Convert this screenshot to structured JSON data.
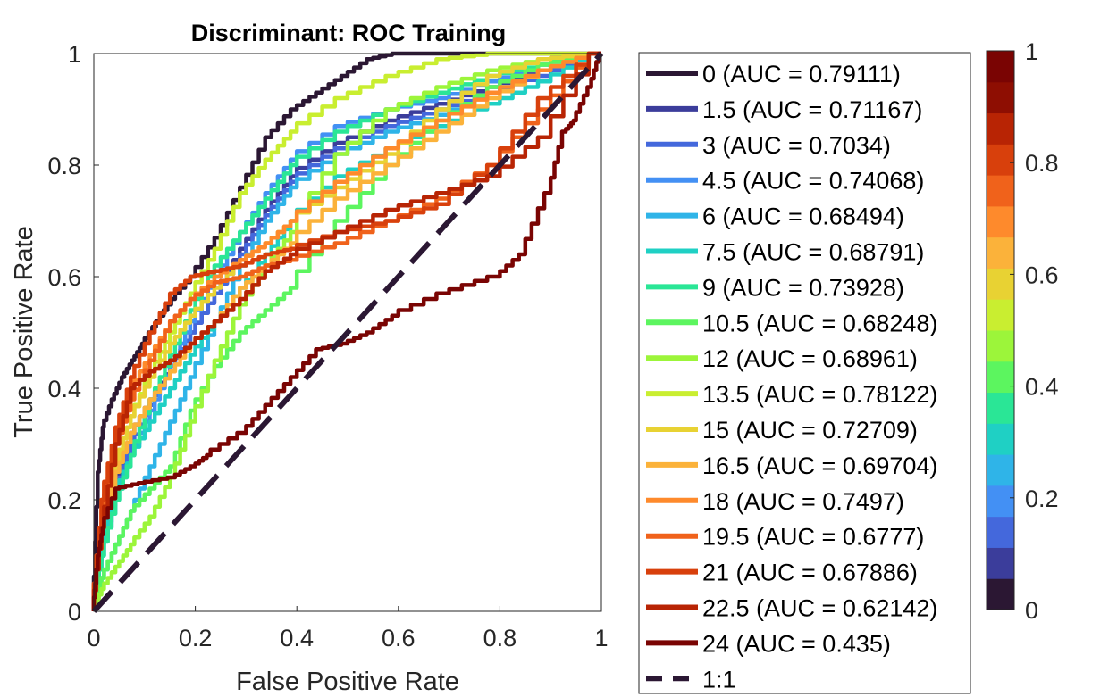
{
  "chart_data": {
    "type": "line",
    "title": "Discriminant: ROC Training",
    "xlabel": "False Positive Rate",
    "ylabel": "True Positive Rate",
    "xlim": [
      0,
      1
    ],
    "ylim": [
      0,
      1
    ],
    "xticks": [
      "0",
      "0.2",
      "0.4",
      "0.6",
      "0.8",
      "1"
    ],
    "yticks": [
      "0",
      "0.2",
      "0.4",
      "0.6",
      "0.8",
      "1"
    ],
    "grid": true,
    "legend_position": "right",
    "colorbar": {
      "ticks": [
        "0",
        "0.2",
        "0.4",
        "0.6",
        "0.8",
        "1"
      ],
      "colors": [
        "#2b1733",
        "#3b3d9b",
        "#4468dc",
        "#4390f4",
        "#2fb4e8",
        "#1fd0c4",
        "#2ae696",
        "#5cf55f",
        "#9cf53a",
        "#c9ee30",
        "#e8d233",
        "#fbb23a",
        "#fe8a2c",
        "#f0621b",
        "#d8400c",
        "#b82404",
        "#8e0e02",
        "#7a0403"
      ]
    },
    "series": [
      {
        "name": "0 (AUC = 0.79111)",
        "color": "#2b1733",
        "x": [
          0,
          0.01,
          0.02,
          0.04,
          0.06,
          0.08,
          0.1,
          0.13,
          0.16,
          0.2,
          0.25,
          0.3,
          0.35,
          0.4,
          0.45,
          0.5,
          0.55,
          0.6,
          0.7,
          0.8,
          1
        ],
        "y": [
          0,
          0.25,
          0.33,
          0.38,
          0.42,
          0.45,
          0.48,
          0.52,
          0.56,
          0.6,
          0.67,
          0.76,
          0.85,
          0.9,
          0.93,
          0.96,
          0.99,
          1,
          1,
          1,
          1
        ]
      },
      {
        "name": "1.5 (AUC = 0.71167)",
        "color": "#3b3d9b",
        "x": [
          0,
          0.02,
          0.05,
          0.08,
          0.12,
          0.16,
          0.2,
          0.25,
          0.3,
          0.35,
          0.4,
          0.5,
          0.6,
          0.7,
          0.8,
          0.9,
          1
        ],
        "y": [
          0,
          0.12,
          0.24,
          0.32,
          0.38,
          0.44,
          0.5,
          0.57,
          0.65,
          0.72,
          0.78,
          0.84,
          0.88,
          0.91,
          0.94,
          0.97,
          1
        ]
      },
      {
        "name": "3 (AUC = 0.7034)",
        "color": "#4468dc",
        "x": [
          0,
          0.02,
          0.05,
          0.08,
          0.12,
          0.16,
          0.2,
          0.25,
          0.3,
          0.35,
          0.4,
          0.5,
          0.6,
          0.7,
          0.8,
          0.9,
          1
        ],
        "y": [
          0,
          0.1,
          0.22,
          0.3,
          0.37,
          0.44,
          0.5,
          0.57,
          0.64,
          0.71,
          0.77,
          0.83,
          0.87,
          0.9,
          0.93,
          0.96,
          1
        ]
      },
      {
        "name": "4.5 (AUC = 0.74068)",
        "color": "#4390f4",
        "x": [
          0,
          0.02,
          0.05,
          0.08,
          0.12,
          0.16,
          0.2,
          0.25,
          0.3,
          0.35,
          0.4,
          0.5,
          0.6,
          0.7,
          0.8,
          0.9,
          1
        ],
        "y": [
          0,
          0.1,
          0.2,
          0.28,
          0.36,
          0.44,
          0.52,
          0.6,
          0.68,
          0.75,
          0.81,
          0.87,
          0.9,
          0.92,
          0.95,
          0.98,
          1
        ]
      },
      {
        "name": "6 (AUC = 0.68494)",
        "color": "#2fb4e8",
        "x": [
          0,
          0.02,
          0.05,
          0.08,
          0.12,
          0.16,
          0.2,
          0.25,
          0.3,
          0.35,
          0.4,
          0.5,
          0.6,
          0.7,
          0.8,
          0.9,
          1
        ],
        "y": [
          0,
          0.06,
          0.12,
          0.18,
          0.26,
          0.34,
          0.42,
          0.52,
          0.62,
          0.7,
          0.76,
          0.82,
          0.86,
          0.89,
          0.93,
          0.97,
          1
        ]
      },
      {
        "name": "7.5 (AUC = 0.68791)",
        "color": "#1fd0c4",
        "x": [
          0,
          0.02,
          0.05,
          0.08,
          0.12,
          0.16,
          0.2,
          0.25,
          0.3,
          0.35,
          0.4,
          0.5,
          0.6,
          0.7,
          0.8,
          0.9,
          1
        ],
        "y": [
          0,
          0.12,
          0.22,
          0.28,
          0.34,
          0.4,
          0.46,
          0.52,
          0.58,
          0.64,
          0.7,
          0.78,
          0.83,
          0.87,
          0.91,
          0.95,
          1
        ]
      },
      {
        "name": "9 (AUC = 0.73928)",
        "color": "#2ae696",
        "x": [
          0,
          0.02,
          0.05,
          0.08,
          0.12,
          0.16,
          0.2,
          0.25,
          0.3,
          0.35,
          0.4,
          0.5,
          0.6,
          0.7,
          0.8,
          0.9,
          1
        ],
        "y": [
          0,
          0.1,
          0.2,
          0.28,
          0.38,
          0.46,
          0.54,
          0.62,
          0.68,
          0.74,
          0.8,
          0.86,
          0.9,
          0.93,
          0.96,
          0.98,
          1
        ]
      },
      {
        "name": "10.5 (AUC = 0.68248)",
        "color": "#5cf55f",
        "x": [
          0,
          0.02,
          0.05,
          0.08,
          0.12,
          0.16,
          0.2,
          0.25,
          0.3,
          0.35,
          0.4,
          0.5,
          0.6,
          0.7,
          0.8,
          0.9,
          1
        ],
        "y": [
          0,
          0.06,
          0.12,
          0.18,
          0.22,
          0.26,
          0.36,
          0.44,
          0.5,
          0.54,
          0.58,
          0.7,
          0.8,
          0.88,
          0.94,
          0.98,
          1
        ]
      },
      {
        "name": "12 (AUC = 0.68961)",
        "color": "#9cf53a",
        "x": [
          0,
          0.02,
          0.05,
          0.08,
          0.12,
          0.16,
          0.2,
          0.25,
          0.3,
          0.35,
          0.4,
          0.5,
          0.6,
          0.7,
          0.8,
          0.9,
          1
        ],
        "y": [
          0,
          0.04,
          0.08,
          0.12,
          0.17,
          0.24,
          0.34,
          0.45,
          0.55,
          0.62,
          0.68,
          0.82,
          0.9,
          0.94,
          0.97,
          0.99,
          1
        ]
      },
      {
        "name": "13.5 (AUC = 0.78122)",
        "color": "#c9ee30",
        "x": [
          0,
          0.02,
          0.05,
          0.08,
          0.12,
          0.16,
          0.2,
          0.25,
          0.3,
          0.35,
          0.4,
          0.5,
          0.6,
          0.7,
          0.8,
          0.9,
          1
        ],
        "y": [
          0,
          0.15,
          0.27,
          0.35,
          0.43,
          0.5,
          0.57,
          0.65,
          0.75,
          0.81,
          0.86,
          0.92,
          0.96,
          0.99,
          1,
          1,
          1
        ]
      },
      {
        "name": "15 (AUC = 0.72709)",
        "color": "#e8d233",
        "x": [
          0,
          0.02,
          0.05,
          0.08,
          0.12,
          0.16,
          0.2,
          0.25,
          0.3,
          0.35,
          0.4,
          0.5,
          0.6,
          0.7,
          0.8,
          0.9,
          1
        ],
        "y": [
          0,
          0.15,
          0.27,
          0.35,
          0.42,
          0.48,
          0.53,
          0.58,
          0.63,
          0.66,
          0.7,
          0.76,
          0.82,
          0.9,
          0.96,
          0.99,
          1
        ]
      },
      {
        "name": "16.5 (AUC = 0.69704)",
        "color": "#fbb23a",
        "x": [
          0,
          0.02,
          0.05,
          0.08,
          0.12,
          0.16,
          0.2,
          0.25,
          0.3,
          0.35,
          0.4,
          0.5,
          0.6,
          0.7,
          0.8,
          0.9,
          1
        ],
        "y": [
          0,
          0.15,
          0.25,
          0.32,
          0.38,
          0.43,
          0.48,
          0.52,
          0.58,
          0.62,
          0.66,
          0.74,
          0.8,
          0.86,
          0.92,
          0.97,
          1
        ]
      },
      {
        "name": "18 (AUC = 0.7497)",
        "color": "#fe8a2c",
        "x": [
          0,
          0.02,
          0.05,
          0.08,
          0.12,
          0.16,
          0.2,
          0.25,
          0.3,
          0.35,
          0.4,
          0.5,
          0.6,
          0.7,
          0.8,
          0.9,
          1
        ],
        "y": [
          0,
          0.2,
          0.32,
          0.4,
          0.46,
          0.52,
          0.56,
          0.6,
          0.63,
          0.66,
          0.7,
          0.77,
          0.83,
          0.88,
          0.93,
          0.97,
          1
        ]
      },
      {
        "name": "19.5 (AUC = 0.6777)",
        "color": "#f0621b",
        "x": [
          0,
          0.02,
          0.05,
          0.08,
          0.12,
          0.16,
          0.2,
          0.25,
          0.3,
          0.35,
          0.4,
          0.5,
          0.6,
          0.7,
          0.8,
          0.9,
          1
        ],
        "y": [
          0,
          0.18,
          0.3,
          0.38,
          0.45,
          0.52,
          0.56,
          0.59,
          0.6,
          0.62,
          0.63,
          0.66,
          0.7,
          0.74,
          0.8,
          0.9,
          1
        ]
      },
      {
        "name": "21 (AUC = 0.67886)",
        "color": "#d8400c",
        "x": [
          0,
          0.02,
          0.05,
          0.08,
          0.12,
          0.16,
          0.2,
          0.25,
          0.3,
          0.35,
          0.4,
          0.5,
          0.6,
          0.7,
          0.8,
          0.9,
          1
        ],
        "y": [
          0,
          0.2,
          0.33,
          0.42,
          0.5,
          0.57,
          0.6,
          0.61,
          0.62,
          0.64,
          0.65,
          0.68,
          0.7,
          0.73,
          0.8,
          0.92,
          1
        ]
      },
      {
        "name": "22.5 (AUC = 0.62142)",
        "color": "#b82404",
        "x": [
          0,
          0.02,
          0.05,
          0.08,
          0.12,
          0.16,
          0.2,
          0.25,
          0.3,
          0.35,
          0.4,
          0.5,
          0.6,
          0.7,
          0.8,
          0.9,
          1
        ],
        "y": [
          0,
          0.15,
          0.3,
          0.4,
          0.43,
          0.45,
          0.48,
          0.52,
          0.56,
          0.61,
          0.64,
          0.68,
          0.72,
          0.75,
          0.78,
          0.85,
          1
        ]
      },
      {
        "name": "24 (AUC = 0.435)",
        "color": "#7a0403",
        "x": [
          0,
          0.01,
          0.02,
          0.05,
          0.1,
          0.16,
          0.2,
          0.23,
          0.3,
          0.35,
          0.4,
          0.45,
          0.5,
          0.55,
          0.6,
          0.7,
          0.8,
          0.85,
          0.9,
          0.93,
          0.95,
          0.98,
          1
        ],
        "y": [
          0,
          0.1,
          0.15,
          0.22,
          0.23,
          0.24,
          0.26,
          0.28,
          0.32,
          0.37,
          0.42,
          0.47,
          0.48,
          0.5,
          0.53,
          0.57,
          0.6,
          0.64,
          0.75,
          0.86,
          0.88,
          0.94,
          1
        ]
      },
      {
        "name": "1:1",
        "color": "#2b1733",
        "dashed": true,
        "x": [
          0,
          1
        ],
        "y": [
          0,
          1
        ]
      }
    ]
  }
}
